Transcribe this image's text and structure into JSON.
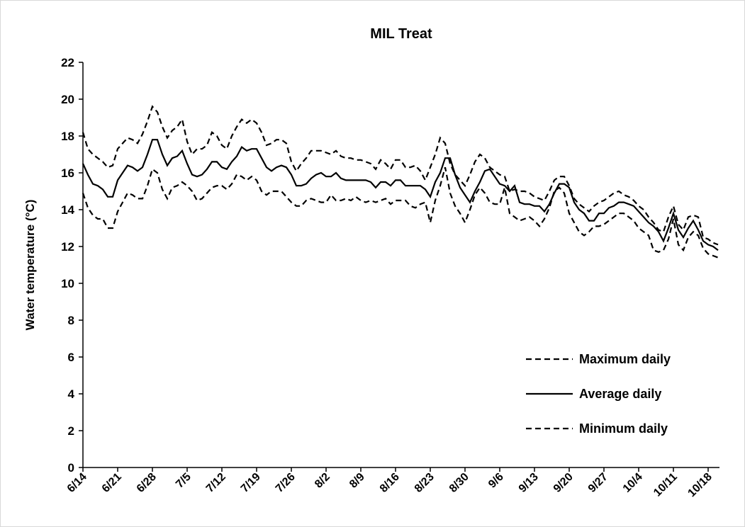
{
  "chart_data": {
    "type": "line",
    "title": "MIL Treat",
    "y_label": "Water temperature (°C)",
    "categories": [
      "6/14",
      null,
      null,
      null,
      null,
      null,
      null,
      "6/21",
      null,
      null,
      null,
      null,
      null,
      null,
      "6/28",
      null,
      null,
      null,
      null,
      null,
      null,
      "7/5",
      null,
      null,
      null,
      null,
      null,
      null,
      "7/12",
      null,
      null,
      null,
      null,
      null,
      null,
      "7/19",
      null,
      null,
      null,
      null,
      null,
      null,
      "7/26",
      null,
      null,
      null,
      null,
      null,
      null,
      "8/2",
      null,
      null,
      null,
      null,
      null,
      null,
      "8/9",
      null,
      null,
      null,
      null,
      null,
      null,
      "8/16",
      null,
      null,
      null,
      null,
      null,
      null,
      "8/23",
      null,
      null,
      null,
      null,
      null,
      null,
      "8/30",
      null,
      null,
      null,
      null,
      null,
      null,
      "9/6",
      null,
      null,
      null,
      null,
      null,
      null,
      "9/13",
      null,
      null,
      null,
      null,
      null,
      null,
      "9/20",
      null,
      null,
      null,
      null,
      null,
      null,
      "9/27",
      null,
      null,
      null,
      null,
      null,
      null,
      "10/4",
      null,
      null,
      null,
      null,
      null,
      null,
      "10/11",
      null,
      null,
      null,
      null,
      null,
      null,
      "10/18",
      null,
      null
    ],
    "series": [
      {
        "name": "Maximum daily",
        "color": "#000000",
        "dash": "dashed",
        "values": [
          18.2,
          17.3,
          17.0,
          16.8,
          16.6,
          16.3,
          16.4,
          17.3,
          17.6,
          17.9,
          17.8,
          17.6,
          18.1,
          18.8,
          19.6,
          19.3,
          18.5,
          17.9,
          18.3,
          18.5,
          18.9,
          17.7,
          17.0,
          17.3,
          17.3,
          17.5,
          18.2,
          18.0,
          17.5,
          17.3,
          18.0,
          18.5,
          18.9,
          18.7,
          18.9,
          18.7,
          18.2,
          17.5,
          17.6,
          17.8,
          17.8,
          17.6,
          16.6,
          16.1,
          16.5,
          16.8,
          17.2,
          17.2,
          17.2,
          17.1,
          17.0,
          17.2,
          16.9,
          16.8,
          16.8,
          16.7,
          16.7,
          16.6,
          16.5,
          16.2,
          16.7,
          16.5,
          16.2,
          16.7,
          16.7,
          16.3,
          16.3,
          16.4,
          16.1,
          15.6,
          16.3,
          17.0,
          17.9,
          17.6,
          16.5,
          15.9,
          15.6,
          15.3,
          15.9,
          16.6,
          17.0,
          16.8,
          16.3,
          16.1,
          15.9,
          15.8,
          15.0,
          15.1,
          15.0,
          15.0,
          14.9,
          14.7,
          14.6,
          14.5,
          15.0,
          15.6,
          15.8,
          15.8,
          15.3,
          14.6,
          14.3,
          14.1,
          13.9,
          14.2,
          14.4,
          14.5,
          14.7,
          14.9,
          15.0,
          14.8,
          14.7,
          14.5,
          14.2,
          14.0,
          13.6,
          13.3,
          12.9,
          12.8,
          13.6,
          14.2,
          13.2,
          12.9,
          13.6,
          13.7,
          13.6,
          12.5,
          12.4,
          12.2,
          12.1
        ]
      },
      {
        "name": "Average daily",
        "color": "#000000",
        "dash": "solid",
        "values": [
          16.5,
          15.9,
          15.4,
          15.3,
          15.1,
          14.7,
          14.7,
          15.6,
          16.0,
          16.4,
          16.3,
          16.1,
          16.3,
          17.0,
          17.8,
          17.8,
          17.0,
          16.4,
          16.8,
          16.9,
          17.2,
          16.5,
          15.9,
          15.8,
          15.9,
          16.2,
          16.6,
          16.6,
          16.3,
          16.2,
          16.6,
          16.9,
          17.4,
          17.2,
          17.3,
          17.3,
          16.8,
          16.3,
          16.1,
          16.3,
          16.4,
          16.3,
          15.9,
          15.3,
          15.3,
          15.4,
          15.7,
          15.9,
          16.0,
          15.8,
          15.8,
          16.0,
          15.7,
          15.6,
          15.6,
          15.6,
          15.6,
          15.6,
          15.5,
          15.2,
          15.5,
          15.5,
          15.3,
          15.6,
          15.6,
          15.3,
          15.3,
          15.3,
          15.3,
          15.1,
          14.7,
          15.5,
          16.0,
          16.8,
          16.8,
          15.9,
          15.2,
          14.8,
          14.4,
          15.0,
          15.5,
          16.1,
          16.2,
          15.8,
          15.4,
          15.3,
          15.0,
          15.3,
          14.4,
          14.3,
          14.3,
          14.2,
          14.2,
          13.9,
          14.3,
          14.9,
          15.4,
          15.4,
          15.2,
          14.4,
          14.0,
          13.8,
          13.4,
          13.4,
          13.8,
          13.8,
          14.1,
          14.2,
          14.4,
          14.4,
          14.3,
          14.2,
          13.9,
          13.6,
          13.3,
          13.1,
          12.8,
          12.3,
          13.0,
          13.8,
          12.9,
          12.5,
          13.0,
          13.4,
          12.9,
          12.3,
          12.1,
          12.0,
          11.8
        ]
      },
      {
        "name": "Minimum daily",
        "color": "#000000",
        "dash": "dashed",
        "values": [
          14.9,
          14.1,
          13.7,
          13.5,
          13.5,
          13.0,
          13.0,
          13.9,
          14.4,
          14.9,
          14.8,
          14.6,
          14.6,
          15.3,
          16.2,
          16.0,
          15.1,
          14.6,
          15.2,
          15.3,
          15.5,
          15.3,
          15.0,
          14.5,
          14.6,
          14.9,
          15.2,
          15.3,
          15.3,
          15.1,
          15.4,
          15.9,
          15.8,
          15.6,
          15.8,
          15.6,
          15.0,
          14.8,
          15.0,
          15.0,
          15.0,
          14.7,
          14.4,
          14.2,
          14.2,
          14.5,
          14.6,
          14.5,
          14.4,
          14.4,
          14.8,
          14.5,
          14.5,
          14.6,
          14.5,
          14.7,
          14.5,
          14.4,
          14.5,
          14.4,
          14.5,
          14.6,
          14.3,
          14.5,
          14.5,
          14.5,
          14.2,
          14.1,
          14.3,
          14.4,
          13.3,
          14.5,
          15.3,
          16.3,
          14.9,
          14.2,
          13.8,
          13.3,
          14.0,
          14.8,
          15.2,
          14.9,
          14.4,
          14.3,
          14.3,
          15.2,
          13.8,
          13.6,
          13.4,
          13.5,
          13.6,
          13.4,
          13.1,
          13.5,
          14.1,
          15.0,
          15.2,
          14.9,
          13.8,
          13.3,
          12.8,
          12.6,
          12.8,
          13.1,
          13.1,
          13.2,
          13.4,
          13.6,
          13.8,
          13.8,
          13.6,
          13.4,
          13.0,
          12.8,
          12.6,
          11.8,
          11.7,
          11.8,
          12.4,
          13.5,
          12.1,
          11.8,
          12.5,
          12.8,
          12.6,
          11.9,
          11.6,
          11.5,
          11.4
        ]
      }
    ],
    "ylim": [
      0,
      22
    ],
    "yticks": [
      0,
      2,
      4,
      6,
      8,
      10,
      12,
      14,
      16,
      18,
      20,
      22
    ],
    "grid": false,
    "legend": "lower right"
  }
}
